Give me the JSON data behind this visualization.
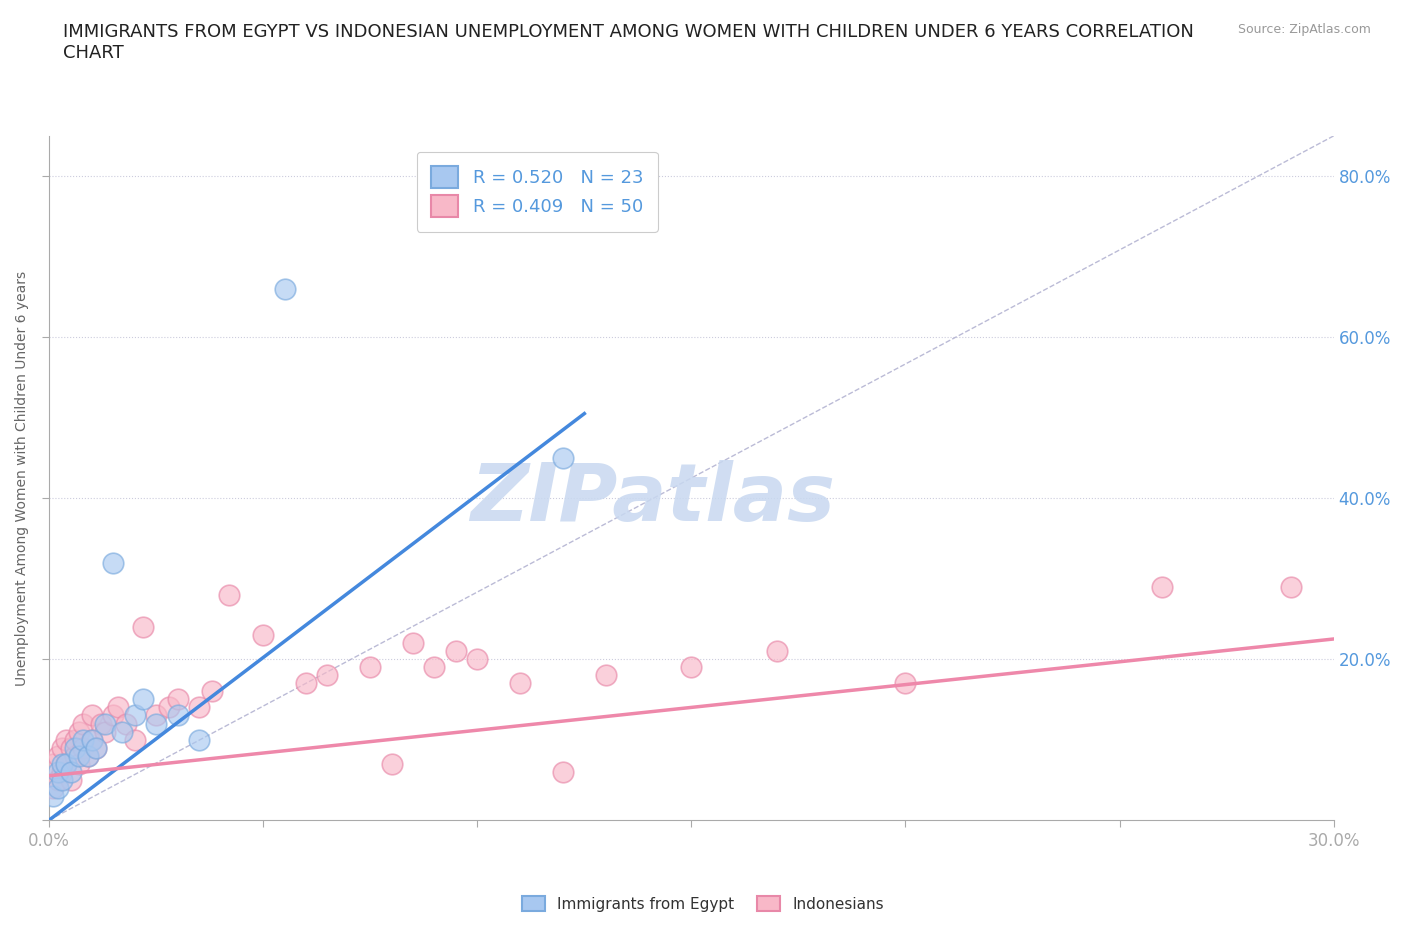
{
  "title": "IMMIGRANTS FROM EGYPT VS INDONESIAN UNEMPLOYMENT AMONG WOMEN WITH CHILDREN UNDER 6 YEARS CORRELATION\nCHART",
  "source_text": "Source: ZipAtlas.com",
  "ylabel": "Unemployment Among Women with Children Under 6 years",
  "xlim": [
    0.0,
    0.3
  ],
  "ylim": [
    0.0,
    0.85
  ],
  "watermark": "ZIPatlas",
  "watermark_color": "#c8d8f0",
  "egypt_color": "#a8c8f0",
  "egypt_edge_color": "#7aaade",
  "indonesia_color": "#f8b8c8",
  "indonesia_edge_color": "#e888a8",
  "egypt_R": 0.52,
  "egypt_N": 23,
  "indonesia_R": 0.409,
  "indonesia_N": 50,
  "egypt_line_color": "#4488dd",
  "indonesia_line_color": "#ee88aa",
  "ref_line_color": "#aaaacc",
  "grid_color": "#ccccdd",
  "title_color": "#222222",
  "title_fontsize": 13,
  "axis_label_color": "#5599dd",
  "egypt_scatter_x": [
    0.001,
    0.002,
    0.002,
    0.003,
    0.003,
    0.004,
    0.005,
    0.006,
    0.007,
    0.008,
    0.009,
    0.01,
    0.011,
    0.013,
    0.015,
    0.017,
    0.02,
    0.022,
    0.025,
    0.03,
    0.035,
    0.055,
    0.12
  ],
  "egypt_scatter_y": [
    0.03,
    0.04,
    0.06,
    0.05,
    0.07,
    0.07,
    0.06,
    0.09,
    0.08,
    0.1,
    0.08,
    0.1,
    0.09,
    0.12,
    0.32,
    0.11,
    0.13,
    0.15,
    0.12,
    0.13,
    0.1,
    0.66,
    0.45
  ],
  "indonesia_scatter_x": [
    0.001,
    0.001,
    0.002,
    0.002,
    0.003,
    0.003,
    0.004,
    0.004,
    0.005,
    0.005,
    0.006,
    0.006,
    0.007,
    0.007,
    0.008,
    0.008,
    0.009,
    0.01,
    0.01,
    0.011,
    0.012,
    0.013,
    0.015,
    0.016,
    0.018,
    0.02,
    0.022,
    0.025,
    0.028,
    0.03,
    0.035,
    0.038,
    0.042,
    0.05,
    0.06,
    0.065,
    0.075,
    0.08,
    0.085,
    0.09,
    0.095,
    0.1,
    0.11,
    0.12,
    0.13,
    0.15,
    0.17,
    0.2,
    0.26,
    0.29
  ],
  "indonesia_scatter_y": [
    0.04,
    0.07,
    0.05,
    0.08,
    0.06,
    0.09,
    0.07,
    0.1,
    0.05,
    0.09,
    0.08,
    0.1,
    0.07,
    0.11,
    0.09,
    0.12,
    0.08,
    0.1,
    0.13,
    0.09,
    0.12,
    0.11,
    0.13,
    0.14,
    0.12,
    0.1,
    0.24,
    0.13,
    0.14,
    0.15,
    0.14,
    0.16,
    0.28,
    0.23,
    0.17,
    0.18,
    0.19,
    0.07,
    0.22,
    0.19,
    0.21,
    0.2,
    0.17,
    0.06,
    0.18,
    0.19,
    0.21,
    0.17,
    0.29,
    0.29
  ],
  "egypt_line_x0": 0.0,
  "egypt_line_y0": 0.0,
  "egypt_line_x1": 0.125,
  "egypt_line_y1": 0.505,
  "indonesia_line_x0": 0.0,
  "indonesia_line_y0": 0.055,
  "indonesia_line_x1": 0.3,
  "indonesia_line_y1": 0.225
}
